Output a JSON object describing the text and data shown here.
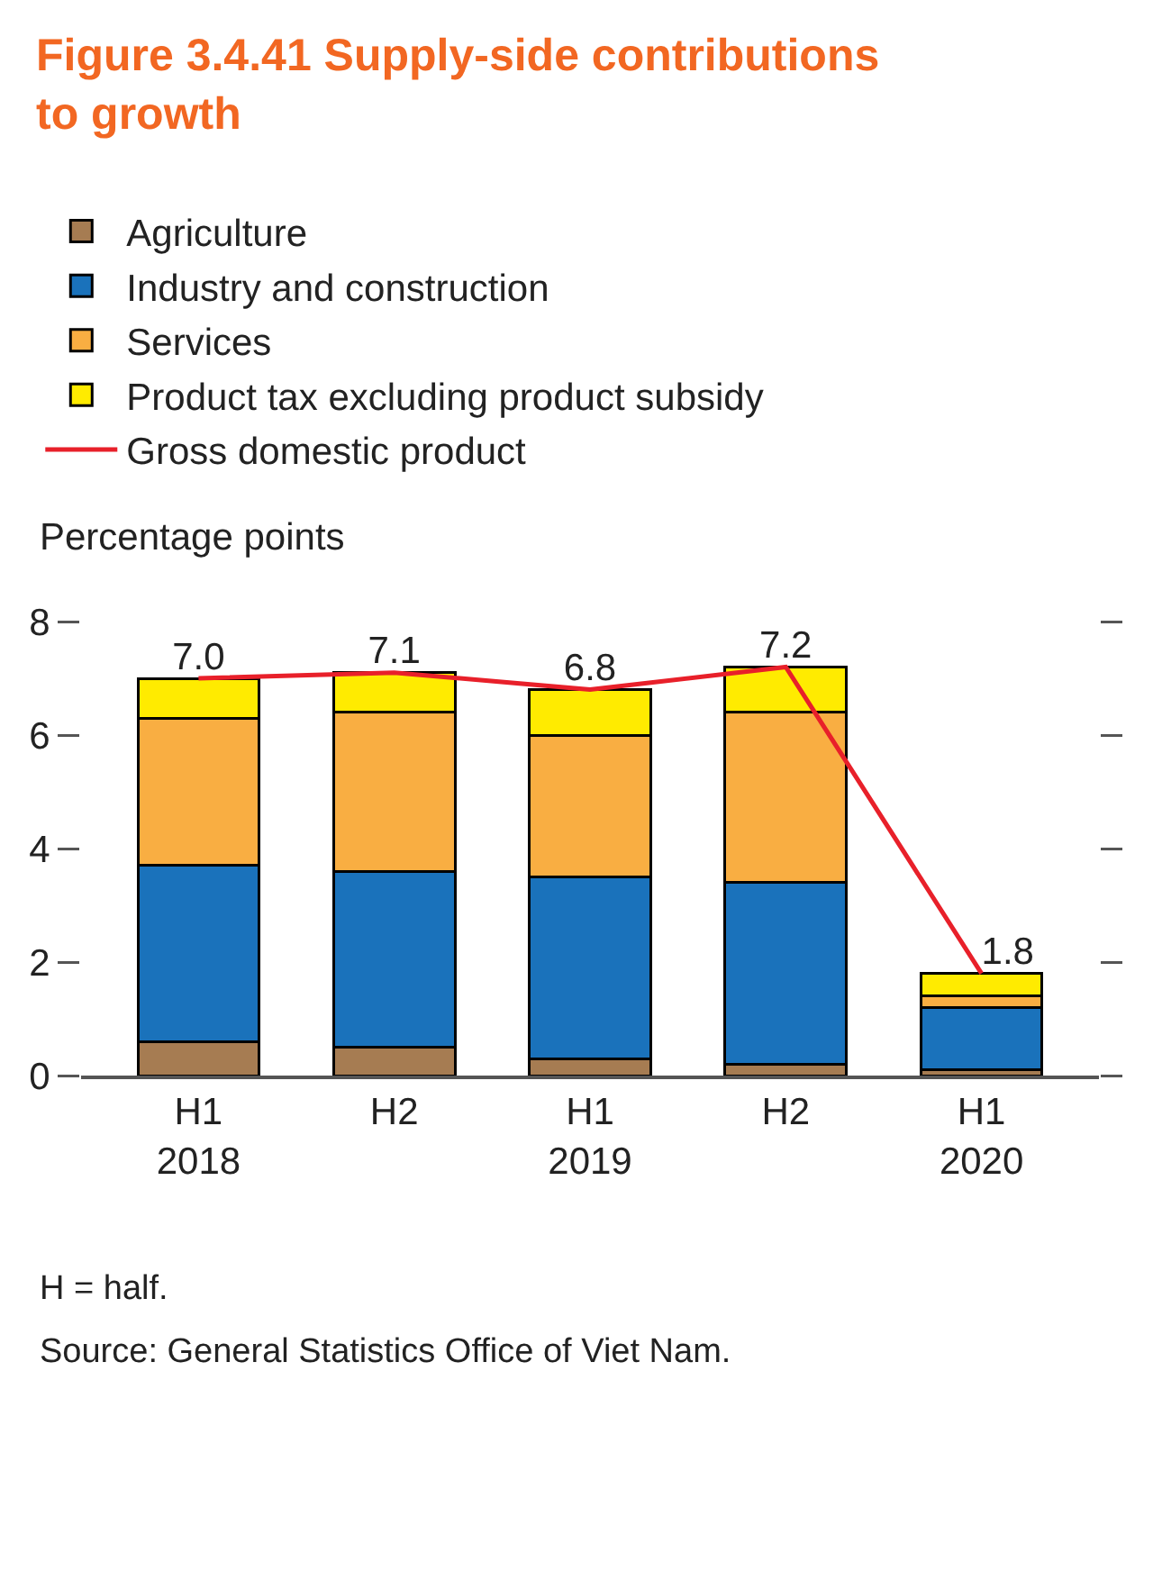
{
  "chart_data": {
    "type": "bar",
    "stacked": true,
    "title": "Figure 3.4.41 Supply-side contributions to growth",
    "ylabel": "Percentage points",
    "categories": [
      "H1\n2018",
      "H2",
      "H1\n2019",
      "H2",
      "H1\n2020"
    ],
    "series": [
      {
        "name": "Agriculture",
        "color": "#a67c52",
        "values": [
          0.6,
          0.5,
          0.3,
          0.2,
          0.1
        ]
      },
      {
        "name": "Industry and construction",
        "color": "#1a72bb",
        "values": [
          3.1,
          3.1,
          3.2,
          3.2,
          1.1
        ]
      },
      {
        "name": "Services",
        "color": "#f9ae42",
        "values": [
          2.6,
          2.8,
          2.5,
          3.0,
          0.2
        ]
      },
      {
        "name": "Product tax excluding product subsidy",
        "color": "#ffeb00",
        "values": [
          0.7,
          0.7,
          0.8,
          0.8,
          0.4
        ]
      },
      {
        "name": "Gross domestic product",
        "type": "line",
        "color": "#e8202a",
        "values": [
          7.0,
          7.1,
          6.8,
          7.2,
          1.8
        ],
        "value_labels": [
          "7.0",
          "7.1",
          "6.8",
          "7.2",
          "1.8"
        ]
      }
    ],
    "ylim": [
      0,
      8
    ],
    "yticks": [
      0,
      2,
      4,
      6,
      8
    ],
    "grid": false,
    "legend": "top",
    "marker": "none",
    "line_style": "solid",
    "annotations": [
      "H = half.",
      "Source: General Statistics Office of Viet Nam."
    ]
  }
}
